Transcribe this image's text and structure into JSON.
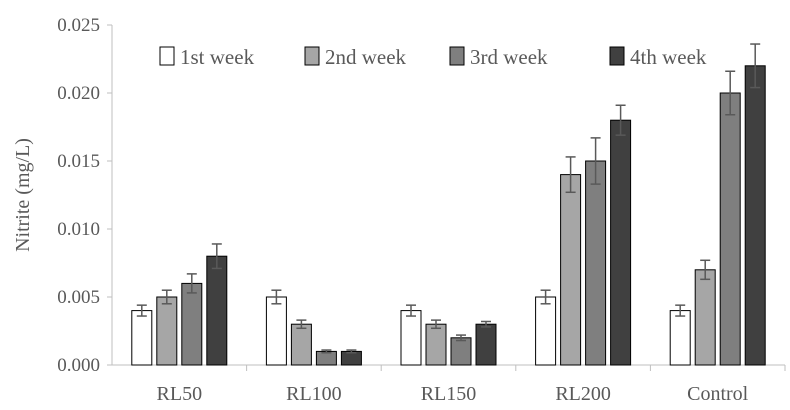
{
  "chart_data": {
    "type": "bar",
    "title": "",
    "xlabel": "",
    "ylabel": "Nitrite (mg/L)",
    "ylim": [
      0,
      0.025
    ],
    "yticks": [
      "0.000",
      "0.005",
      "0.010",
      "0.015",
      "0.020",
      "0.025"
    ],
    "grid": false,
    "legend_position": "top",
    "categories": [
      "RL50",
      "RL100",
      "RL150",
      "RL200",
      "Control"
    ],
    "series": [
      {
        "name": "1st week",
        "color": "#ffffff",
        "values": [
          0.004,
          0.005,
          0.004,
          0.005,
          0.004
        ],
        "errors": [
          0.0004,
          0.0005,
          0.0004,
          0.0005,
          0.0004
        ]
      },
      {
        "name": "2nd week",
        "color": "#a6a6a6",
        "values": [
          0.005,
          0.003,
          0.003,
          0.014,
          0.007
        ],
        "errors": [
          0.0005,
          0.0003,
          0.0003,
          0.0013,
          0.0007
        ]
      },
      {
        "name": "3rd week",
        "color": "#7f7f7f",
        "values": [
          0.006,
          0.001,
          0.002,
          0.015,
          0.02
        ],
        "errors": [
          0.0007,
          0.0001,
          0.0002,
          0.0017,
          0.0016
        ]
      },
      {
        "name": "4th week",
        "color": "#404040",
        "values": [
          0.008,
          0.001,
          0.003,
          0.018,
          0.022
        ],
        "errors": [
          0.0009,
          0.0001,
          0.0002,
          0.0011,
          0.0016
        ]
      }
    ]
  }
}
